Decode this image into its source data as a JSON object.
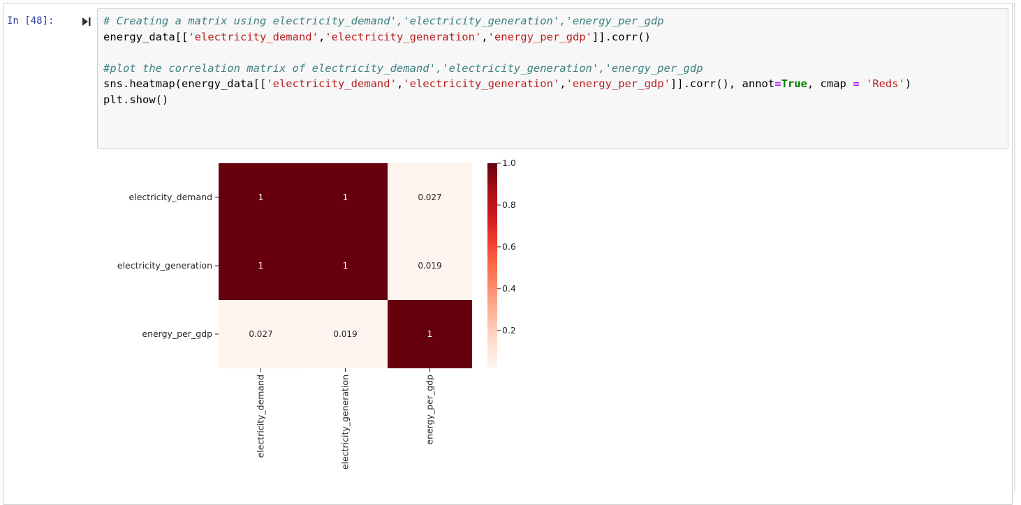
{
  "cell": {
    "prompt": "In [48]:",
    "code_lines": [
      [
        {
          "t": "# Creating a matrix using electricity_demand','electricity_generation','energy_per_gdp",
          "c": "cm-comment"
        }
      ],
      [
        {
          "t": "energy_data[[",
          "c": ""
        },
        {
          "t": "'electricity_demand'",
          "c": "cm-string"
        },
        {
          "t": ",",
          "c": ""
        },
        {
          "t": "'electricity_generation'",
          "c": "cm-string"
        },
        {
          "t": ",",
          "c": ""
        },
        {
          "t": "'energy_per_gdp'",
          "c": "cm-string"
        },
        {
          "t": "]].corr()",
          "c": ""
        }
      ],
      [],
      [
        {
          "t": "#plot the correlation matrix of electricity_demand','electricity_generation','energy_per_gdp",
          "c": "cm-comment"
        }
      ],
      [
        {
          "t": "sns.heatmap(energy_data[[",
          "c": ""
        },
        {
          "t": "'electricity_demand'",
          "c": "cm-string"
        },
        {
          "t": ",",
          "c": ""
        },
        {
          "t": "'electricity_generation'",
          "c": "cm-string"
        },
        {
          "t": ",",
          "c": ""
        },
        {
          "t": "'energy_per_gdp'",
          "c": "cm-string"
        },
        {
          "t": "]].corr(), annot",
          "c": ""
        },
        {
          "t": "=",
          "c": "cm-op"
        },
        {
          "t": "True",
          "c": "cm-kw"
        },
        {
          "t": ", cmap ",
          "c": ""
        },
        {
          "t": "=",
          "c": "cm-op"
        },
        {
          "t": " ",
          "c": ""
        },
        {
          "t": "'Reds'",
          "c": "cm-string"
        },
        {
          "t": ")",
          "c": ""
        }
      ],
      [
        {
          "t": "plt.show()",
          "c": ""
        }
      ]
    ]
  },
  "icons": {
    "run": "run-cell-icon"
  },
  "chart_data": {
    "type": "heatmap",
    "rows": [
      "electricity_demand",
      "electricity_generation",
      "energy_per_gdp"
    ],
    "columns": [
      "electricity_demand",
      "electricity_generation",
      "energy_per_gdp"
    ],
    "values": [
      [
        1,
        1,
        0.027
      ],
      [
        1,
        1,
        0.019
      ],
      [
        0.027,
        0.019,
        1
      ]
    ],
    "annotations": [
      [
        "1",
        "1",
        "0.027"
      ],
      [
        "1",
        "1",
        "0.019"
      ],
      [
        "0.027",
        "0.019",
        "1"
      ]
    ],
    "colormap": "Reds",
    "vmin": 0.019,
    "vmax": 1.0,
    "colorbar_ticks": [
      0.2,
      0.4,
      0.6,
      0.8,
      1.0
    ],
    "colorbar_tick_labels": [
      "0.2",
      "0.4",
      "0.6",
      "0.8",
      "1.0"
    ],
    "colors": {
      "high": "#67000d",
      "low": "#fff5f0",
      "annotation_dark": "#ffffff",
      "annotation_light": "#262626"
    }
  }
}
